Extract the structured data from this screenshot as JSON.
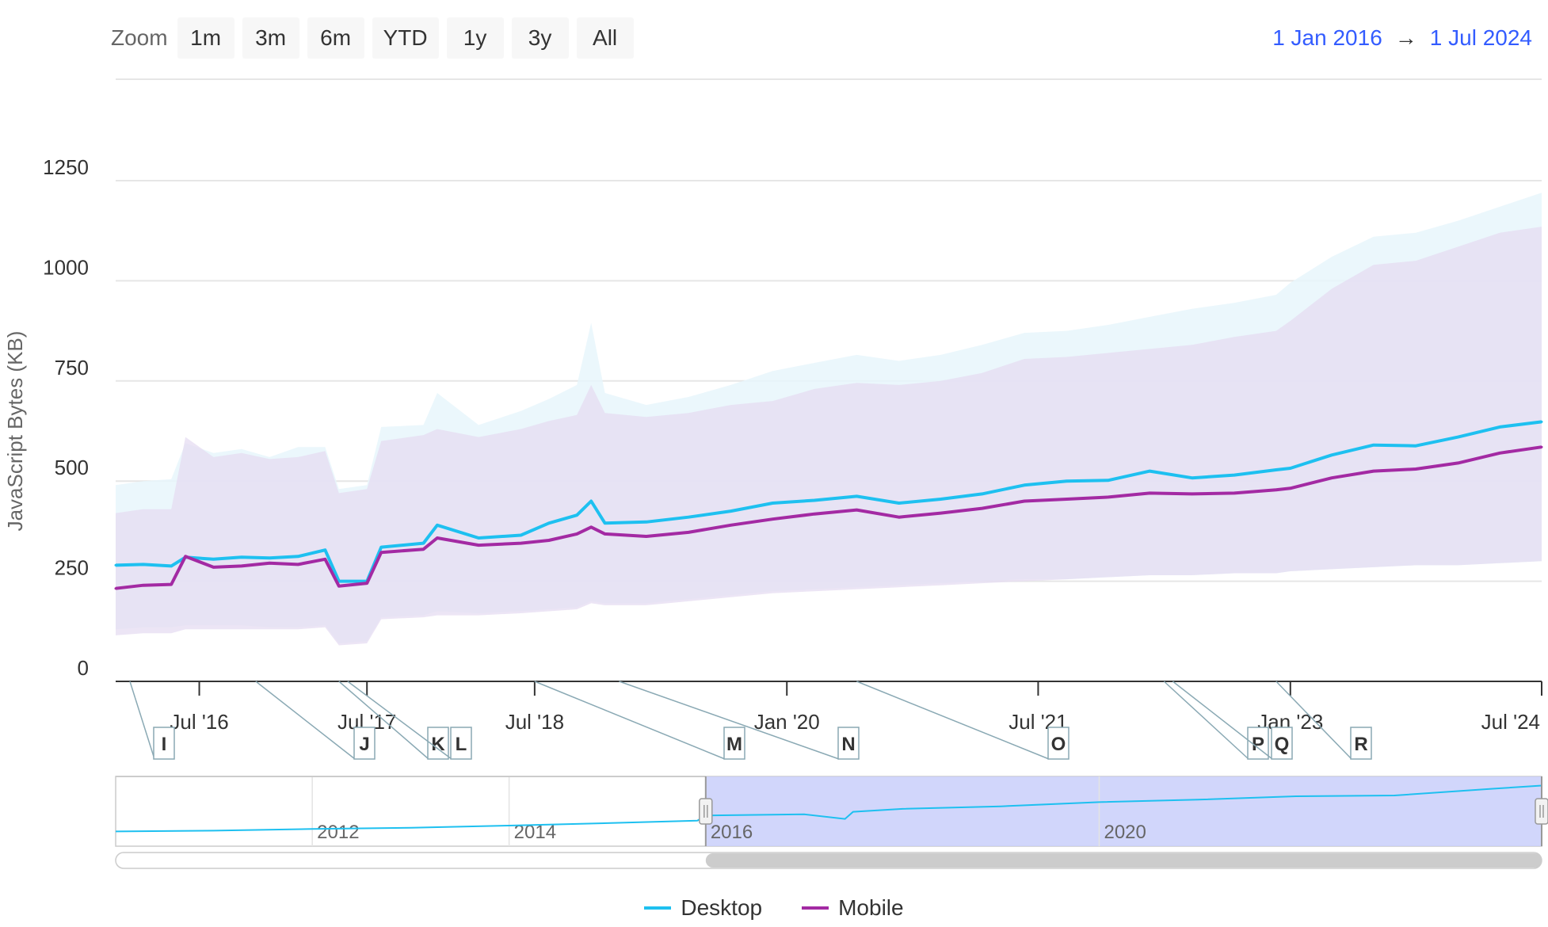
{
  "toolbar": {
    "zoom_label": "Zoom",
    "buttons": [
      "1m",
      "3m",
      "6m",
      "YTD",
      "1y",
      "3y",
      "All"
    ],
    "range_from": "1 Jan 2016",
    "range_arrow": "→",
    "range_to": "1 Jul 2024"
  },
  "colors": {
    "desktop": "#1ec0f0",
    "mobile": "#a32aa3",
    "desktop_band": "#e8f6fc",
    "mobile_band": "#e6dcf1",
    "navigator_fill": "#c9cffa"
  },
  "chart_data": {
    "type": "line",
    "ylabel": "JavaScript Bytes (KB)",
    "ylim": [
      0,
      1250
    ],
    "yticks": [
      0,
      250,
      500,
      750,
      1000,
      1250
    ],
    "xlim": [
      "2016-01-01",
      "2024-07-01"
    ],
    "xticks": [
      {
        "date": "2016-07-01",
        "label": "Jul '16"
      },
      {
        "date": "2017-07-01",
        "label": "Jul '17"
      },
      {
        "date": "2018-07-01",
        "label": "Jul '18"
      },
      {
        "date": "2020-01-01",
        "label": "Jan '20"
      },
      {
        "date": "2021-07-01",
        "label": "Jul '21"
      },
      {
        "date": "2023-01-01",
        "label": "Jan '23"
      },
      {
        "date": "2024-07-01",
        "label": "Jul '24"
      }
    ],
    "grid": true,
    "legend_position": "bottom-center",
    "x": [
      "2016-01-01",
      "2016-03-01",
      "2016-05-01",
      "2016-06-01",
      "2016-08-01",
      "2016-10-01",
      "2016-12-01",
      "2017-02-01",
      "2017-04-01",
      "2017-05-01",
      "2017-07-01",
      "2017-08-01",
      "2017-11-01",
      "2017-12-01",
      "2018-03-01",
      "2018-06-01",
      "2018-08-01",
      "2018-10-01",
      "2018-11-01",
      "2018-12-01",
      "2019-03-01",
      "2019-06-01",
      "2019-09-01",
      "2019-12-01",
      "2020-03-01",
      "2020-06-01",
      "2020-09-01",
      "2020-12-01",
      "2021-03-01",
      "2021-06-01",
      "2021-09-01",
      "2021-12-01",
      "2022-03-01",
      "2022-06-01",
      "2022-09-01",
      "2022-12-01",
      "2023-01-01",
      "2023-04-01",
      "2023-07-01",
      "2023-10-01",
      "2024-01-01",
      "2024-04-01",
      "2024-07-01"
    ],
    "series": [
      {
        "name": "Desktop",
        "values": [
          290,
          292,
          288,
          310,
          305,
          310,
          308,
          312,
          328,
          250,
          250,
          335,
          345,
          390,
          358,
          365,
          395,
          415,
          450,
          395,
          398,
          410,
          425,
          445,
          452,
          462,
          445,
          455,
          468,
          490,
          500,
          502,
          525,
          508,
          515,
          528,
          532,
          565,
          590,
          588,
          610,
          635,
          648
        ]
      },
      {
        "name": "Mobile",
        "values": [
          232,
          240,
          242,
          312,
          285,
          288,
          295,
          292,
          305,
          238,
          245,
          322,
          330,
          358,
          340,
          345,
          352,
          368,
          385,
          368,
          362,
          372,
          390,
          405,
          418,
          428,
          410,
          420,
          432,
          450,
          455,
          460,
          470,
          468,
          470,
          478,
          482,
          508,
          525,
          530,
          545,
          570,
          585
        ]
      }
    ],
    "desktop_band": {
      "upper": [
        490,
        500,
        505,
        595,
        570,
        580,
        560,
        585,
        585,
        480,
        490,
        635,
        640,
        720,
        640,
        675,
        705,
        740,
        895,
        720,
        690,
        710,
        740,
        775,
        795,
        815,
        800,
        815,
        840,
        870,
        875,
        890,
        910,
        930,
        945,
        965,
        995,
        1060,
        1110,
        1120,
        1150,
        1185,
        1220
      ],
      "lower": [
        130,
        135,
        135,
        140,
        140,
        140,
        135,
        135,
        140,
        95,
        100,
        160,
        165,
        175,
        170,
        175,
        180,
        185,
        200,
        195,
        195,
        205,
        215,
        225,
        230,
        235,
        240,
        245,
        250,
        255,
        255,
        260,
        265,
        265,
        270,
        270,
        275,
        280,
        285,
        290,
        290,
        295,
        300
      ]
    },
    "mobile_band": {
      "upper": [
        420,
        430,
        430,
        610,
        560,
        570,
        555,
        560,
        575,
        470,
        480,
        600,
        615,
        630,
        610,
        630,
        650,
        665,
        740,
        670,
        660,
        670,
        690,
        700,
        730,
        745,
        740,
        750,
        770,
        805,
        810,
        820,
        830,
        840,
        860,
        875,
        900,
        980,
        1040,
        1050,
        1085,
        1120,
        1135
      ],
      "lower": [
        115,
        120,
        120,
        130,
        130,
        130,
        130,
        130,
        135,
        90,
        95,
        155,
        160,
        165,
        165,
        170,
        175,
        180,
        195,
        190,
        190,
        200,
        210,
        220,
        225,
        230,
        235,
        240,
        245,
        250,
        255,
        260,
        265,
        265,
        270,
        270,
        275,
        280,
        285,
        290,
        290,
        295,
        300
      ]
    },
    "annotations": [
      {
        "label": "I",
        "date": "2016-02-01"
      },
      {
        "label": "J",
        "date": "2016-11-01"
      },
      {
        "label": "K",
        "date": "2017-05-01"
      },
      {
        "label": "L",
        "date": "2017-05-20"
      },
      {
        "label": "M",
        "date": "2018-07-01"
      },
      {
        "label": "N",
        "date": "2019-01-01"
      },
      {
        "label": "O",
        "date": "2020-06-01"
      },
      {
        "label": "P",
        "date": "2022-04-01"
      },
      {
        "label": "Q",
        "date": "2022-04-20"
      },
      {
        "label": "R",
        "date": "2022-12-01"
      }
    ],
    "navigator": {
      "xlim": [
        "2010-01-01",
        "2024-07-01"
      ],
      "labels": [
        {
          "date": "2012-01-01",
          "label": "2012"
        },
        {
          "date": "2014-01-01",
          "label": "2014"
        },
        {
          "date": "2016-01-01",
          "label": "2016"
        },
        {
          "date": "2020-01-01",
          "label": "2020"
        }
      ],
      "x": [
        "2010-01-01",
        "2011-01-01",
        "2012-01-01",
        "2013-01-01",
        "2014-01-01",
        "2015-01-01",
        "2015-12-01",
        "2016-01-01",
        "2017-01-01",
        "2017-06-01",
        "2017-07-01",
        "2018-01-01",
        "2019-01-01",
        "2020-01-01",
        "2021-01-01",
        "2022-01-01",
        "2023-01-01",
        "2024-01-01",
        "2024-07-01"
      ],
      "values": [
        100,
        110,
        130,
        145,
        170,
        200,
        230,
        290,
        305,
        250,
        335,
        370,
        400,
        450,
        480,
        520,
        530,
        610,
        648
      ],
      "selected": [
        "2016-01-01",
        "2024-07-01"
      ]
    }
  }
}
